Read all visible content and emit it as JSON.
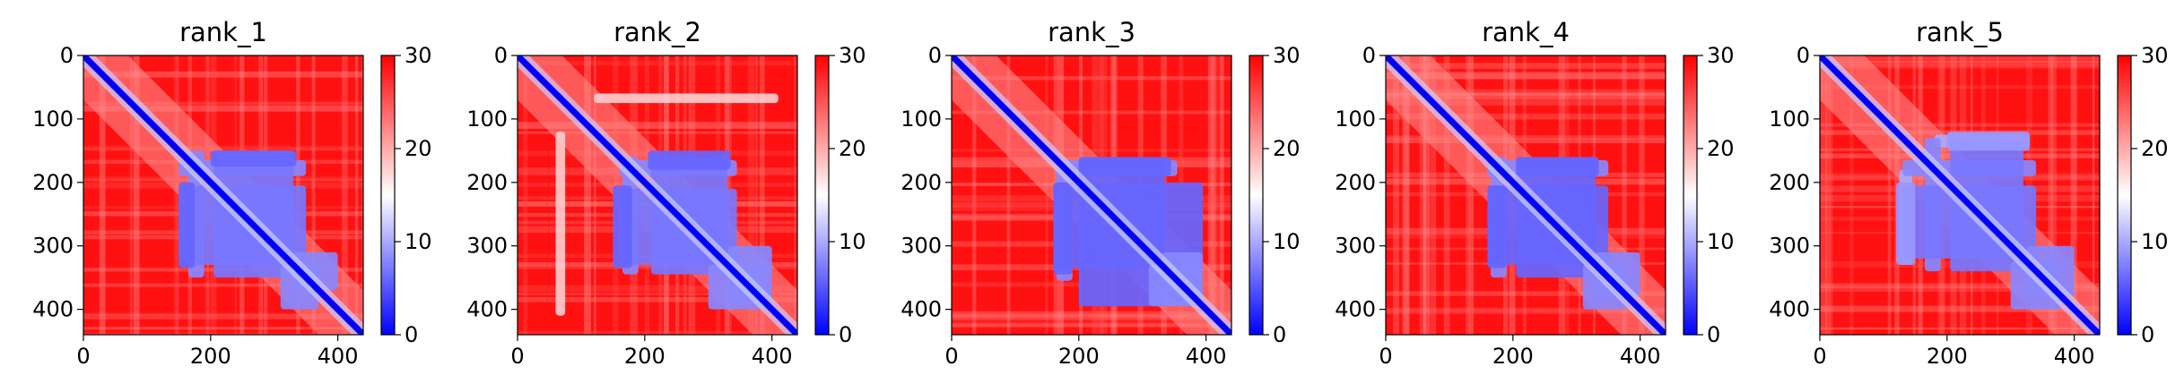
{
  "colors": {
    "low": "#0000ff",
    "mid": "#ffffff",
    "high": "#ff0000",
    "axis": "#000000"
  },
  "chart_data": [
    {
      "type": "heatmap",
      "title": "rank_1",
      "n": 440,
      "xlim": [
        0,
        440
      ],
      "ylim": [
        440,
        0
      ],
      "x_ticks": [
        "0",
        "200",
        "400"
      ],
      "y_ticks": [
        "0",
        "100",
        "200",
        "300",
        "400"
      ],
      "colorbar": {
        "min": 0,
        "max": 30,
        "ticks": [
          "0",
          "10",
          "20",
          "30"
        ],
        "colormap": "bwr"
      },
      "blocks": [
        {
          "x": [
            150,
            350
          ],
          "y": [
            165,
            190
          ],
          "value": 8
        },
        {
          "x": [
            150,
            350
          ],
          "y": [
            205,
            330
          ],
          "value": 7
        },
        {
          "x": [
            150,
            175
          ],
          "y": [
            200,
            335
          ],
          "value": 6
        },
        {
          "x": [
            310,
            370
          ],
          "y": [
            330,
            400
          ],
          "value": 8
        }
      ]
    },
    {
      "type": "heatmap",
      "title": "rank_2",
      "n": 440,
      "xlim": [
        0,
        440
      ],
      "ylim": [
        440,
        0
      ],
      "x_ticks": [
        "0",
        "200",
        "400"
      ],
      "y_ticks": [
        "0",
        "100",
        "200",
        "300",
        "400"
      ],
      "colorbar": {
        "min": 0,
        "max": 30,
        "ticks": [
          "0",
          "10",
          "20",
          "30"
        ],
        "colormap": "bwr"
      },
      "blocks": [
        {
          "x": [
            160,
            345
          ],
          "y": [
            165,
            190
          ],
          "value": 8
        },
        {
          "x": [
            160,
            345
          ],
          "y": [
            210,
            330
          ],
          "value": 7
        },
        {
          "x": [
            150,
            180
          ],
          "y": [
            205,
            335
          ],
          "value": 6
        },
        {
          "x": [
            300,
            390
          ],
          "y": [
            330,
            400
          ],
          "value": 8
        },
        {
          "x": [
            120,
            410
          ],
          "y": [
            60,
            75
          ],
          "value": 18
        }
      ]
    },
    {
      "type": "heatmap",
      "title": "rank_3",
      "n": 440,
      "xlim": [
        0,
        440
      ],
      "ylim": [
        440,
        0
      ],
      "x_ticks": [
        "0",
        "200",
        "400"
      ],
      "y_ticks": [
        "0",
        "100",
        "200",
        "300",
        "400"
      ],
      "colorbar": {
        "min": 0,
        "max": 30,
        "ticks": [
          "0",
          "10",
          "20",
          "30"
        ],
        "colormap": "bwr"
      },
      "blocks": [
        {
          "x": [
            170,
            355
          ],
          "y": [
            165,
            190
          ],
          "value": 8
        },
        {
          "x": [
            160,
            395
          ],
          "y": [
            200,
            335
          ],
          "value": 6
        },
        {
          "x": [
            160,
            190
          ],
          "y": [
            200,
            345
          ],
          "value": 6
        },
        {
          "x": [
            310,
            390
          ],
          "y": [
            330,
            395
          ],
          "value": 8
        }
      ]
    },
    {
      "type": "heatmap",
      "title": "rank_4",
      "n": 440,
      "xlim": [
        0,
        440
      ],
      "ylim": [
        440,
        0
      ],
      "x_ticks": [
        "0",
        "200",
        "400"
      ],
      "y_ticks": [
        "0",
        "100",
        "200",
        "300",
        "400"
      ],
      "colorbar": {
        "min": 0,
        "max": 30,
        "ticks": [
          "0",
          "10",
          "20",
          "30"
        ],
        "colormap": "bwr"
      },
      "blocks": [
        {
          "x": [
            160,
            350
          ],
          "y": [
            165,
            190
          ],
          "value": 8
        },
        {
          "x": [
            160,
            350
          ],
          "y": [
            205,
            330
          ],
          "value": 6
        },
        {
          "x": [
            160,
            190
          ],
          "y": [
            205,
            335
          ],
          "value": 6
        },
        {
          "x": [
            310,
            380
          ],
          "y": [
            330,
            400
          ],
          "value": 8
        }
      ]
    },
    {
      "type": "heatmap",
      "title": "rank_5",
      "n": 440,
      "xlim": [
        0,
        440
      ],
      "ylim": [
        440,
        0
      ],
      "x_ticks": [
        "0",
        "200",
        "400"
      ],
      "y_ticks": [
        "0",
        "100",
        "200",
        "300",
        "400"
      ],
      "colorbar": {
        "min": 0,
        "max": 30,
        "ticks": [
          "0",
          "10",
          "20",
          "30"
        ],
        "colormap": "bwr"
      },
      "blocks": [
        {
          "x": [
            180,
            330
          ],
          "y": [
            125,
            145
          ],
          "value": 10
        },
        {
          "x": [
            130,
            340
          ],
          "y": [
            165,
            190
          ],
          "value": 8
        },
        {
          "x": [
            130,
            340
          ],
          "y": [
            205,
            320
          ],
          "value": 7
        },
        {
          "x": [
            120,
            150
          ],
          "y": [
            200,
            330
          ],
          "value": 9
        },
        {
          "x": [
            300,
            380
          ],
          "y": [
            325,
            400
          ],
          "value": 8
        }
      ]
    }
  ]
}
